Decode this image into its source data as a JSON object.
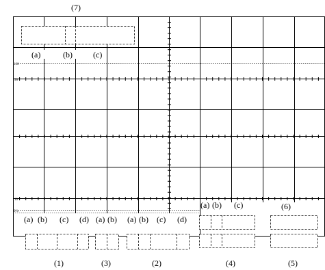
{
  "screen_labels": {
    "top_callout": "(7)",
    "top_sub": [
      "(a)",
      "(b)",
      "(c)"
    ],
    "bottom_sub_1": [
      "(a)",
      "(b)",
      "(c)",
      "(d)"
    ],
    "bottom_sub_3": [
      "(a)",
      "(b)"
    ],
    "bottom_sub_2": [
      "(a)",
      "(b)",
      "(c)",
      "(d)"
    ],
    "bottom_sub_4": [
      "(a)",
      "(b)",
      "(c)"
    ],
    "callout_6": "(6)",
    "bottom_numbers": [
      "(1)",
      "(3)",
      "(2)",
      "(4)",
      "(5)"
    ]
  },
  "marker_labels": {
    "m100": "100",
    "m90": "90",
    "m10": "10",
    "m0": "0%"
  },
  "colors": {
    "grid": "#000000",
    "background": "#ffffff",
    "dashed": "#000000",
    "dotted": "#000000"
  }
}
